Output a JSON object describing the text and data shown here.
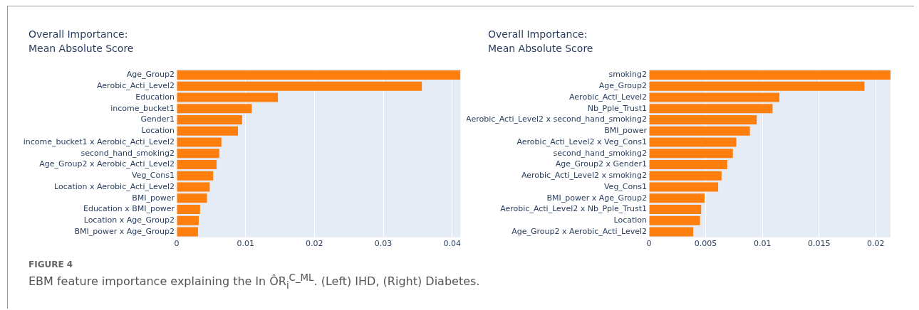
{
  "chart_data": [
    {
      "type": "bar",
      "orientation": "horizontal",
      "title": "Overall Importance:",
      "subtitle": "Mean Absolute Score",
      "categories": [
        "Age_Group2",
        "Aerobic_Acti_Level2",
        "Education",
        "income_bucket1",
        "Gender1",
        "Location",
        "income_bucket1 x Aerobic_Acti_Level2",
        "second_hand_smoking2",
        "Age_Group2 x Aerobic_Acti_Level2",
        "Veg_Cons1",
        "Location x Aerobic_Acti_Level2",
        "BMI_power",
        "Education x BMI_power",
        "Location x Age_Group2",
        "BMI_power x Age_Group2"
      ],
      "values": [
        0.0412,
        0.0356,
        0.0147,
        0.0109,
        0.0095,
        0.0089,
        0.0065,
        0.0062,
        0.0058,
        0.0053,
        0.0048,
        0.0044,
        0.0034,
        0.0032,
        0.0031
      ],
      "color": "#ff7f0e",
      "xlim": [
        0,
        0.0412
      ],
      "xticks": [
        0,
        0.01,
        0.02,
        0.03,
        0.04
      ],
      "grid": "x",
      "legend": false,
      "annotations": [
        "FIGURE 4",
        "EBM feature importance explaining the ln ÔR$_{i}$$^{C_ML}$. (Left) IHD, (Right) Diabetes."
      ]
    },
    {
      "type": "bar",
      "orientation": "horizontal",
      "title": "Overall Importance:",
      "subtitle": "Mean Absolute Score",
      "categories": [
        "smoking2",
        "Age_Group2",
        "Aerobic_Acti_Level2",
        "Nb_Pple_Trust1",
        "Aerobic_Acti_Level2 x second_hand_smoking2",
        "BMI_power",
        "Aerobic_Acti_Level2 x Veg_Cons1",
        "second_hand_smoking2",
        "Age_Group2 x Gender1",
        "Aerobic_Acti_Level2 x smoking2",
        "Veg_Cons1",
        "BMI_power x Age_Group2",
        "Aerobic_Acti_Level2 x Nb_Pple_Trust1",
        "Location",
        "Age_Group2 x Aerobic_Acti_Level2"
      ],
      "values": [
        0.0213,
        0.019,
        0.0115,
        0.0109,
        0.0095,
        0.0089,
        0.0077,
        0.0074,
        0.0069,
        0.0064,
        0.0061,
        0.0049,
        0.0046,
        0.0045,
        0.0039
      ],
      "color": "#ff7f0e",
      "xlim": [
        0,
        0.0213
      ],
      "xticks": [
        0,
        0.005,
        0.01,
        0.015,
        0.02
      ],
      "grid": "x",
      "legend": false
    }
  ]
}
